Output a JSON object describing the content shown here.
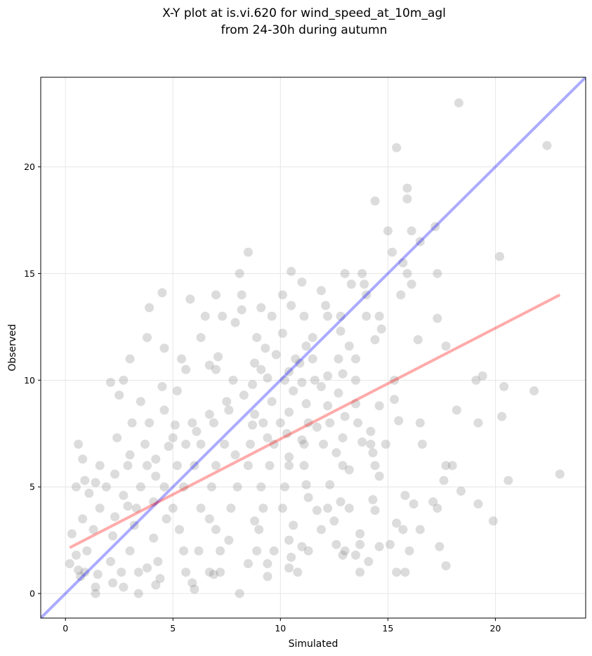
{
  "chart_data": {
    "type": "scatter",
    "title_lines": [
      "X-Y plot at is.vi.620 for wind_speed_at_10m_agl",
      "from 24-30h during autumn"
    ],
    "xlabel": "Simulated",
    "ylabel": "Observed",
    "xlim": [
      -1.15,
      24.2
    ],
    "ylim": [
      -1.15,
      24.2
    ],
    "xticks": [
      0,
      5,
      10,
      15,
      20
    ],
    "yticks": [
      0,
      5,
      10,
      15,
      20
    ],
    "grid": true,
    "colors": {
      "points": "#808080",
      "identity_line": "#0000ff",
      "fit_line": "#ff0000",
      "grid": "#e6e6e6",
      "frame": "#000000"
    },
    "series": [
      {
        "type": "scatter",
        "points": [
          [
            18.3,
            23.0
          ],
          [
            22.4,
            21.0
          ],
          [
            15.4,
            20.9
          ],
          [
            15.9,
            19.0
          ],
          [
            15.9,
            18.5
          ],
          [
            14.4,
            18.4
          ],
          [
            17.2,
            17.2
          ],
          [
            15.0,
            17.0
          ],
          [
            16.1,
            17.0
          ],
          [
            16.5,
            16.5
          ],
          [
            15.2,
            16.0
          ],
          [
            8.5,
            16.0
          ],
          [
            15.7,
            15.5
          ],
          [
            20.2,
            15.8
          ],
          [
            17.3,
            15.0
          ],
          [
            15.9,
            15.0
          ],
          [
            13.0,
            15.0
          ],
          [
            13.8,
            15.0
          ],
          [
            8.1,
            15.0
          ],
          [
            10.5,
            15.1
          ],
          [
            16.1,
            14.5
          ],
          [
            13.3,
            14.5
          ],
          [
            13.9,
            14.5
          ],
          [
            10.1,
            14.0
          ],
          [
            11.9,
            14.2
          ],
          [
            11.0,
            14.6
          ],
          [
            4.5,
            14.1
          ],
          [
            5.8,
            13.8
          ],
          [
            7.0,
            14.0
          ],
          [
            15.6,
            14.0
          ],
          [
            14.0,
            14.0
          ],
          [
            8.2,
            14.0
          ],
          [
            3.9,
            13.4
          ],
          [
            9.1,
            13.4
          ],
          [
            8.2,
            13.3
          ],
          [
            10.5,
            13.5
          ],
          [
            12.1,
            13.5
          ],
          [
            9.6,
            13.0
          ],
          [
            11.1,
            13.0
          ],
          [
            12.2,
            13.0
          ],
          [
            14.0,
            13.0
          ],
          [
            14.6,
            13.0
          ],
          [
            6.5,
            13.0
          ],
          [
            7.3,
            13.0
          ],
          [
            12.8,
            13.0
          ],
          [
            17.3,
            12.9
          ],
          [
            7.9,
            12.7
          ],
          [
            14.7,
            12.4
          ],
          [
            12.8,
            12.3
          ],
          [
            10.1,
            12.2
          ],
          [
            8.9,
            12.0
          ],
          [
            11.5,
            12.0
          ],
          [
            14.4,
            11.9
          ],
          [
            6.3,
            12.0
          ],
          [
            16.4,
            11.9
          ],
          [
            3.8,
            12.0
          ],
          [
            11.2,
            11.6
          ],
          [
            9.3,
            11.5
          ],
          [
            17.7,
            11.6
          ],
          [
            4.6,
            11.5
          ],
          [
            13.2,
            11.6
          ],
          [
            9.8,
            11.2
          ],
          [
            7.1,
            11.1
          ],
          [
            10.7,
            11.0
          ],
          [
            11.5,
            11.0
          ],
          [
            12.7,
            11.0
          ],
          [
            13.5,
            11.0
          ],
          [
            5.4,
            11.0
          ],
          [
            8.8,
            10.8
          ],
          [
            10.9,
            10.8
          ],
          [
            6.7,
            10.7
          ],
          [
            3.0,
            11.0
          ],
          [
            5.6,
            10.5
          ],
          [
            7.0,
            10.5
          ],
          [
            9.1,
            10.5
          ],
          [
            10.4,
            10.4
          ],
          [
            12.2,
            10.2
          ],
          [
            12.9,
            10.3
          ],
          [
            19.4,
            10.2
          ],
          [
            13.5,
            10.0
          ],
          [
            10.2,
            10.0
          ],
          [
            9.4,
            10.1
          ],
          [
            11.6,
            10.0
          ],
          [
            2.7,
            10.0
          ],
          [
            7.8,
            10.0
          ],
          [
            11.0,
            9.9
          ],
          [
            19.1,
            10.0
          ],
          [
            15.3,
            10.0
          ],
          [
            8.7,
            9.8
          ],
          [
            2.1,
            9.9
          ],
          [
            11.9,
            9.7
          ],
          [
            20.4,
            9.7
          ],
          [
            4.5,
            9.7
          ],
          [
            21.8,
            9.5
          ],
          [
            10.6,
            9.5
          ],
          [
            5.2,
            9.5
          ],
          [
            12.7,
            9.4
          ],
          [
            8.3,
            9.3
          ],
          [
            2.5,
            9.3
          ],
          [
            9.6,
            9.0
          ],
          [
            7.5,
            9.0
          ],
          [
            3.5,
            9.0
          ],
          [
            11.2,
            8.9
          ],
          [
            13.5,
            8.9
          ],
          [
            15.3,
            9.1
          ],
          [
            12.2,
            8.8
          ],
          [
            14.6,
            8.8
          ],
          [
            7.6,
            8.6
          ],
          [
            4.6,
            8.6
          ],
          [
            18.2,
            8.6
          ],
          [
            10.4,
            8.5
          ],
          [
            8.8,
            8.4
          ],
          [
            20.3,
            8.3
          ],
          [
            6.7,
            8.4
          ],
          [
            13.0,
            8.3
          ],
          [
            15.5,
            8.1
          ],
          [
            16.5,
            8.0
          ],
          [
            19.2,
            8.0
          ],
          [
            10.0,
            8.0
          ],
          [
            11.3,
            8.0
          ],
          [
            12.3,
            8.0
          ],
          [
            13.6,
            8.0
          ],
          [
            9.2,
            8.0
          ],
          [
            5.9,
            8.0
          ],
          [
            6.9,
            8.0
          ],
          [
            3.1,
            8.0
          ],
          [
            3.9,
            8.0
          ],
          [
            5.1,
            7.9
          ],
          [
            8.7,
            7.9
          ],
          [
            11.7,
            7.8
          ],
          [
            14.2,
            7.6
          ],
          [
            6.1,
            7.6
          ],
          [
            10.3,
            7.5
          ],
          [
            9.4,
            7.3
          ],
          [
            12.9,
            7.3
          ],
          [
            2.4,
            7.3
          ],
          [
            5.0,
            7.3
          ],
          [
            11.0,
            7.2
          ],
          [
            13.8,
            7.1
          ],
          [
            0.6,
            7.0
          ],
          [
            3.7,
            7.0
          ],
          [
            5.6,
            7.0
          ],
          [
            6.3,
            7.0
          ],
          [
            7.4,
            7.0
          ],
          [
            8.6,
            7.0
          ],
          [
            9.7,
            7.0
          ],
          [
            11.1,
            7.0
          ],
          [
            12.0,
            7.0
          ],
          [
            14.2,
            7.0
          ],
          [
            14.9,
            7.0
          ],
          [
            16.6,
            7.0
          ],
          [
            4.8,
            6.9
          ],
          [
            12.6,
            6.6
          ],
          [
            14.3,
            6.6
          ],
          [
            7.9,
            6.5
          ],
          [
            10.4,
            6.4
          ],
          [
            3.0,
            6.5
          ],
          [
            4.2,
            6.3
          ],
          [
            0.8,
            6.3
          ],
          [
            11.1,
            6.0
          ],
          [
            12.9,
            6.0
          ],
          [
            14.4,
            6.0
          ],
          [
            17.7,
            6.0
          ],
          [
            18.0,
            6.0
          ],
          [
            2.9,
            6.0
          ],
          [
            3.8,
            6.0
          ],
          [
            5.2,
            6.0
          ],
          [
            6.0,
            6.0
          ],
          [
            7.0,
            6.0
          ],
          [
            8.5,
            6.0
          ],
          [
            9.5,
            6.0
          ],
          [
            10.4,
            6.0
          ],
          [
            1.6,
            6.0
          ],
          [
            13.2,
            5.8
          ],
          [
            2.3,
            5.6
          ],
          [
            14.6,
            5.5
          ],
          [
            4.2,
            5.5
          ],
          [
            0.9,
            5.3
          ],
          [
            1.4,
            5.2
          ],
          [
            20.6,
            5.3
          ],
          [
            17.6,
            5.3
          ],
          [
            23.0,
            5.6
          ],
          [
            11.2,
            5.1
          ],
          [
            12.3,
            5.1
          ],
          [
            1.9,
            5.0
          ],
          [
            3.5,
            5.0
          ],
          [
            4.6,
            5.0
          ],
          [
            5.5,
            5.0
          ],
          [
            6.8,
            5.0
          ],
          [
            8.0,
            5.0
          ],
          [
            9.1,
            5.0
          ],
          [
            10.2,
            5.0
          ],
          [
            0.5,
            5.0
          ],
          [
            18.4,
            4.8
          ],
          [
            1.1,
            4.7
          ],
          [
            2.7,
            4.6
          ],
          [
            15.8,
            4.6
          ],
          [
            11.3,
            4.5
          ],
          [
            14.3,
            4.4
          ],
          [
            17.1,
            4.3
          ],
          [
            12.8,
            4.3
          ],
          [
            16.2,
            4.2
          ],
          [
            19.2,
            4.2
          ],
          [
            4.1,
            4.3
          ],
          [
            2.9,
            4.1
          ],
          [
            5.0,
            4.0
          ],
          [
            6.3,
            4.0
          ],
          [
            7.7,
            4.0
          ],
          [
            9.2,
            4.0
          ],
          [
            10.1,
            4.0
          ],
          [
            12.2,
            4.0
          ],
          [
            13.2,
            4.0
          ],
          [
            17.3,
            4.0
          ],
          [
            1.6,
            4.0
          ],
          [
            3.3,
            4.0
          ],
          [
            11.7,
            3.9
          ],
          [
            14.4,
            3.9
          ],
          [
            0.8,
            3.5
          ],
          [
            2.3,
            3.6
          ],
          [
            4.7,
            3.5
          ],
          [
            6.7,
            3.5
          ],
          [
            8.8,
            3.4
          ],
          [
            12.5,
            3.4
          ],
          [
            19.9,
            3.4
          ],
          [
            15.4,
            3.3
          ],
          [
            10.6,
            3.2
          ],
          [
            3.2,
            3.2
          ],
          [
            5.3,
            3.0
          ],
          [
            7.0,
            3.0
          ],
          [
            9.0,
            3.0
          ],
          [
            11.9,
            3.0
          ],
          [
            16.5,
            3.0
          ],
          [
            15.7,
            3.0
          ],
          [
            1.3,
            3.0
          ],
          [
            13.7,
            2.8
          ],
          [
            0.3,
            2.8
          ],
          [
            2.2,
            2.7
          ],
          [
            4.1,
            2.6
          ],
          [
            7.6,
            2.5
          ],
          [
            10.4,
            2.5
          ],
          [
            12.6,
            2.3
          ],
          [
            13.7,
            2.3
          ],
          [
            15.1,
            2.3
          ],
          [
            17.4,
            2.2
          ],
          [
            14.6,
            2.2
          ],
          [
            11.0,
            2.2
          ],
          [
            3.0,
            2.0
          ],
          [
            5.5,
            2.0
          ],
          [
            7.2,
            2.0
          ],
          [
            8.9,
            2.0
          ],
          [
            9.7,
            2.0
          ],
          [
            11.3,
            2.0
          ],
          [
            13.0,
            2.0
          ],
          [
            16.0,
            2.0
          ],
          [
            1.0,
            2.0
          ],
          [
            6.2,
            2.0
          ],
          [
            13.5,
            1.8
          ],
          [
            12.9,
            1.8
          ],
          [
            10.5,
            1.7
          ],
          [
            0.5,
            1.8
          ],
          [
            14.1,
            1.5
          ],
          [
            2.1,
            1.5
          ],
          [
            4.3,
            1.5
          ],
          [
            8.5,
            1.4
          ],
          [
            9.4,
            1.4
          ],
          [
            17.7,
            1.3
          ],
          [
            10.4,
            1.2
          ],
          [
            3.8,
            1.2
          ],
          [
            5.6,
            1.0
          ],
          [
            6.7,
            1.0
          ],
          [
            7.2,
            1.0
          ],
          [
            2.6,
            1.0
          ],
          [
            3.4,
            1.0
          ],
          [
            0.9,
            1.0
          ],
          [
            10.8,
            1.0
          ],
          [
            13.7,
            1.0
          ],
          [
            15.4,
            1.0
          ],
          [
            15.8,
            1.0
          ],
          [
            1.5,
            0.9
          ],
          [
            9.4,
            0.8
          ],
          [
            0.7,
            0.8
          ],
          [
            4.4,
            0.7
          ],
          [
            6.9,
            0.9
          ],
          [
            2.2,
            0.5
          ],
          [
            5.9,
            0.5
          ],
          [
            1.4,
            0.3
          ],
          [
            4.2,
            0.4
          ],
          [
            2.7,
            0.3
          ],
          [
            8.1,
            0.0
          ],
          [
            1.4,
            0.0
          ],
          [
            3.4,
            0.0
          ],
          [
            6.0,
            0.2
          ],
          [
            0.2,
            1.4
          ],
          [
            0.6,
            1.1
          ]
        ]
      }
    ],
    "identity_line": [
      [
        -1.15,
        -1.15
      ],
      [
        24.2,
        24.2
      ]
    ],
    "fit_line": [
      [
        0.2,
        2.15
      ],
      [
        23.0,
        14.0
      ]
    ]
  }
}
